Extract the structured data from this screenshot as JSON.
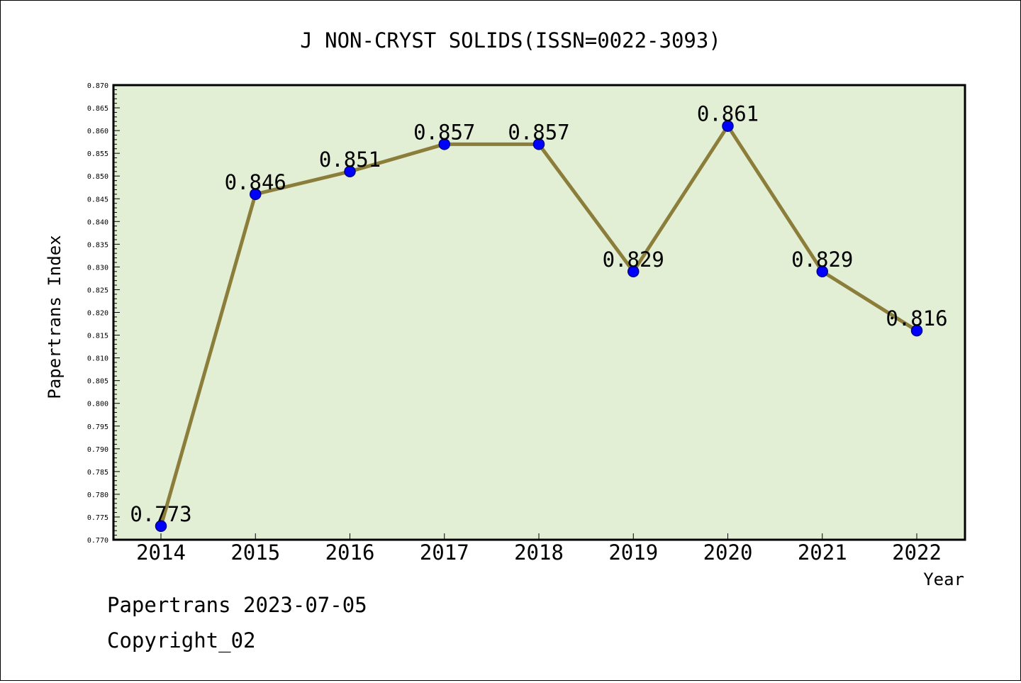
{
  "chart_data": {
    "type": "line",
    "title": "J NON-CRYST SOLIDS(ISSN=0022-3093)",
    "xlabel": "Year",
    "ylabel": "Papertrans Index",
    "categories": [
      "2014",
      "2015",
      "2016",
      "2017",
      "2018",
      "2019",
      "2020",
      "2021",
      "2022"
    ],
    "series": [
      {
        "values": [
          0.773,
          0.846,
          0.851,
          0.857,
          0.857,
          0.829,
          0.861,
          0.829,
          0.816
        ],
        "data_labels": [
          "0.773",
          "0.846",
          "0.851",
          "0.857",
          "0.857",
          "0.829",
          "0.861",
          "0.829",
          "0.816"
        ]
      }
    ],
    "ylim": [
      0.77,
      0.87
    ],
    "y_major_ticks": [
      "0.770",
      "0.775",
      "0.780",
      "0.785",
      "0.790",
      "0.795",
      "0.800",
      "0.805",
      "0.810",
      "0.815",
      "0.820",
      "0.825",
      "0.830",
      "0.835",
      "0.840",
      "0.845",
      "0.850",
      "0.855",
      "0.860",
      "0.865",
      "0.870"
    ],
    "grid": false,
    "legend": "none",
    "colors": {
      "plot_background": "#e2efd4",
      "line": "#8b7d3a",
      "marker": "#0000ff",
      "marker_edge": "#00008b",
      "axes": "#000000"
    }
  },
  "footer": {
    "source": "Papertrans 2023-07-05",
    "copyright": "Copyright_02"
  }
}
